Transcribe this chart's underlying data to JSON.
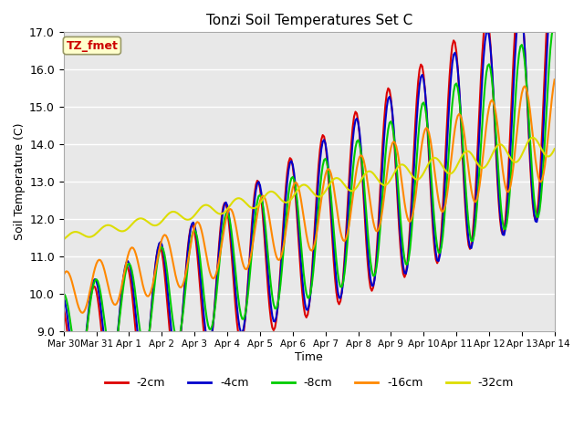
{
  "title": "Tonzi Soil Temperatures Set C",
  "xlabel": "Time",
  "ylabel": "Soil Temperature (C)",
  "ylim": [
    9.0,
    17.0
  ],
  "yticks": [
    9.0,
    10.0,
    11.0,
    12.0,
    13.0,
    14.0,
    15.0,
    16.0,
    17.0
  ],
  "background_color": "#e8e8e8",
  "annotation_label": "TZ_fmet",
  "annotation_color": "#cc0000",
  "annotation_bg": "#ffffcc",
  "series": [
    {
      "label": "-2cm",
      "color": "#dd0000",
      "lw": 1.5
    },
    {
      "label": "-4cm",
      "color": "#0000cc",
      "lw": 1.5
    },
    {
      "label": "-8cm",
      "color": "#00cc00",
      "lw": 1.5
    },
    {
      "label": "-16cm",
      "color": "#ff8800",
      "lw": 1.5
    },
    {
      "label": "-32cm",
      "color": "#dddd00",
      "lw": 1.5
    }
  ],
  "xtick_labels": [
    "Mar 30",
    "Mar 31",
    "Apr 1",
    "Apr 2",
    "Apr 3",
    "Apr 4",
    "Apr 5",
    "Apr 6",
    "Apr 7",
    "Apr 8",
    "Apr 9",
    "Apr 10",
    "Apr 11",
    "Apr 12",
    "Apr 13",
    "Apr 14"
  ],
  "num_points": 361
}
